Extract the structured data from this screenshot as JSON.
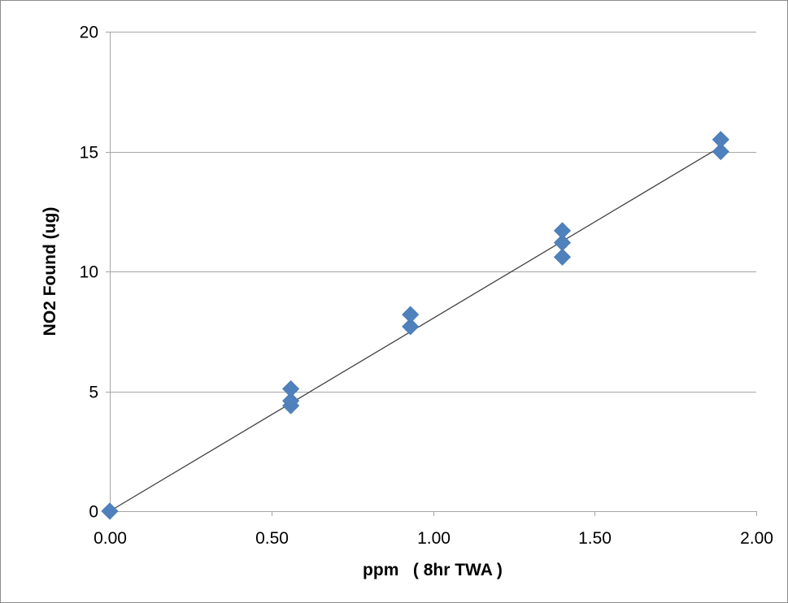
{
  "chart_data": {
    "type": "scatter",
    "title": "",
    "xlabel": "ppm   ( 8hr TWA )",
    "ylabel": "NO2 Found (ug)",
    "xlim": [
      0,
      2
    ],
    "ylim": [
      0,
      20
    ],
    "x_ticks": [
      "0.00",
      "0.50",
      "1.00",
      "1.50",
      "2.00"
    ],
    "x_tick_values": [
      0,
      0.5,
      1.0,
      1.5,
      2.0
    ],
    "y_ticks": [
      "0",
      "5",
      "10",
      "15",
      "20"
    ],
    "y_tick_values": [
      0,
      5,
      10,
      15,
      20
    ],
    "grid": "horizontal",
    "legend": "none",
    "series": [
      {
        "marker": "diamond",
        "color": "#4F81BD",
        "points": [
          {
            "x": 0.0,
            "y": 0.0
          },
          {
            "x": 0.56,
            "y": 4.4
          },
          {
            "x": 0.56,
            "y": 4.6
          },
          {
            "x": 0.56,
            "y": 5.1
          },
          {
            "x": 0.93,
            "y": 7.7
          },
          {
            "x": 0.93,
            "y": 8.2
          },
          {
            "x": 1.4,
            "y": 10.6
          },
          {
            "x": 1.4,
            "y": 11.2
          },
          {
            "x": 1.4,
            "y": 11.7
          },
          {
            "x": 1.89,
            "y": 15.0
          },
          {
            "x": 1.89,
            "y": 15.5
          }
        ]
      }
    ],
    "trendline": {
      "type": "linear",
      "color": "#404040",
      "from": {
        "x": 0.0,
        "y": 0.0
      },
      "to": {
        "x": 1.89,
        "y": 15.2
      }
    },
    "gridline_color": "#A6A6A6",
    "axis_color": "#A6A6A6"
  }
}
